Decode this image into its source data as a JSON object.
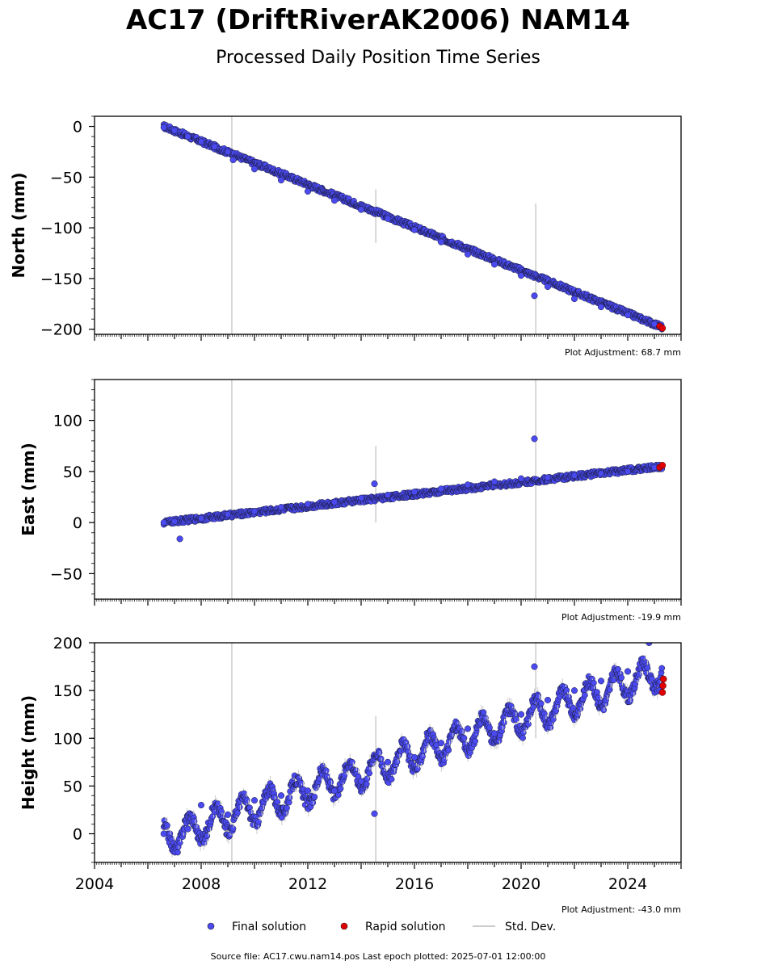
{
  "title": "AC17 (DriftRiverAK2006) NAM14",
  "subtitle": "Processed Daily Position Time Series",
  "legend": {
    "final": "Final solution",
    "rapid": "Rapid solution",
    "std": "Std. Dev."
  },
  "footer": "Source file: AC17.cwu.nam14.pos  Last epoch plotted: 2025-07-01 12:00:00",
  "colors": {
    "final": "#4a4af0",
    "rapid": "#e00000",
    "std": "#cccccc"
  },
  "chart_data": [
    {
      "type": "scatter",
      "ylabel": "North (mm)",
      "adjustment": "Plot Adjustment: 68.7 mm",
      "xlim": [
        2004,
        2026
      ],
      "ylim": [
        -205,
        10
      ],
      "yticks": [
        0,
        -50,
        -100,
        -150,
        -200
      ],
      "ytick_labels": [
        "0",
        "−50",
        "−100",
        "−150",
        "−200"
      ],
      "show_xtick_labels": false,
      "trend": {
        "start": [
          2006.6,
          0
        ],
        "end": [
          2025.3,
          -198
        ]
      },
      "final_solution": {
        "x": [
          2006.6,
          2007.0,
          2007.5,
          2008.0,
          2008.5,
          2009.0,
          2009.2,
          2010.0,
          2011.0,
          2012.0,
          2013.0,
          2014.0,
          2015.0,
          2016.0,
          2017.0,
          2018.0,
          2019.0,
          2020.0,
          2020.5,
          2021.0,
          2022.0,
          2023.0,
          2024.0,
          2025.0
        ],
        "y": [
          -1,
          -4,
          -10,
          -15,
          -20,
          -25,
          -33,
          -42,
          -53,
          -64,
          -73,
          -82,
          -91,
          -102,
          -114,
          -126,
          -136,
          -147,
          -167,
          -158,
          -170,
          -178,
          -186,
          -195
        ]
      },
      "rapid_solution": {
        "x": [
          2025.2,
          2025.3
        ],
        "y": [
          -197,
          -199
        ]
      },
      "std_dev_bars": [
        {
          "x": 2009.15,
          "low": -205,
          "high": 10
        },
        {
          "x": 2014.55,
          "low": -115,
          "high": -62
        },
        {
          "x": 2020.55,
          "low": -205,
          "high": -76
        }
      ]
    },
    {
      "type": "scatter",
      "ylabel": "East (mm)",
      "adjustment": "Plot Adjustment: -19.9 mm",
      "xlim": [
        2004,
        2026
      ],
      "ylim": [
        -75,
        140
      ],
      "yticks": [
        100,
        50,
        0,
        -50
      ],
      "ytick_labels": [
        "100",
        "50",
        "0",
        "−50"
      ],
      "show_xtick_labels": false,
      "trend": {
        "start": [
          2006.6,
          0
        ],
        "end": [
          2025.3,
          55
        ]
      },
      "final_solution": {
        "x": [
          2006.6,
          2007.0,
          2007.2,
          2008.0,
          2009.0,
          2010.0,
          2011.0,
          2012.0,
          2013.0,
          2014.0,
          2014.5,
          2015.0,
          2016.0,
          2017.0,
          2018.0,
          2019.0,
          2020.0,
          2020.5,
          2021.0,
          2022.0,
          2023.0,
          2024.0,
          2025.0
        ],
        "y": [
          0,
          1,
          -16,
          4,
          8,
          11,
          15,
          18,
          20,
          24,
          38,
          27,
          30,
          33,
          37,
          40,
          43,
          82,
          44,
          46,
          48,
          50,
          54
        ]
      },
      "rapid_solution": {
        "x": [
          2025.2,
          2025.3
        ],
        "y": [
          54,
          56
        ]
      },
      "std_dev_bars": [
        {
          "x": 2009.15,
          "low": -75,
          "high": 140
        },
        {
          "x": 2014.55,
          "low": 0,
          "high": 75
        },
        {
          "x": 2020.55,
          "low": -75,
          "high": 140
        }
      ]
    },
    {
      "type": "scatter",
      "ylabel": "Height (mm)",
      "adjustment": "Plot Adjustment: -43.0 mm",
      "xlim": [
        2004,
        2026
      ],
      "ylim": [
        -30,
        200
      ],
      "yticks": [
        200,
        150,
        100,
        50,
        0
      ],
      "ytick_labels": [
        "200",
        "150",
        "100",
        "50",
        "0"
      ],
      "show_xtick_labels": true,
      "xticks": [
        2004,
        2008,
        2012,
        2016,
        2020,
        2024
      ],
      "xtick_labels": [
        "2004",
        "2008",
        "2012",
        "2016",
        "2020",
        "2024"
      ],
      "trend": {
        "start": [
          2006.6,
          -5
        ],
        "end": [
          2025.3,
          170
        ],
        "seasonal_amplitude": 15
      },
      "final_solution": {
        "x": [
          2006.6,
          2007.5,
          2008.0,
          2009.0,
          2010.0,
          2011.0,
          2012.0,
          2013.0,
          2014.0,
          2014.5,
          2015.0,
          2016.0,
          2017.0,
          2018.0,
          2019.0,
          2020.0,
          2020.5,
          2021.0,
          2022.0,
          2023.0,
          2024.0,
          2024.8,
          2025.2
        ],
        "y": [
          0,
          5,
          30,
          20,
          35,
          40,
          45,
          45,
          55,
          21,
          75,
          80,
          95,
          110,
          105,
          125,
          175,
          140,
          150,
          160,
          170,
          200,
          150
        ]
      },
      "rapid_solution": {
        "x": [
          2025.3,
          2025.32,
          2025.34
        ],
        "y": [
          148,
          155,
          162
        ]
      },
      "std_dev_bars": [
        {
          "x": 2009.15,
          "low": -30,
          "high": 200
        },
        {
          "x": 2014.55,
          "low": -30,
          "high": 123
        },
        {
          "x": 2020.55,
          "low": 100,
          "high": 200
        }
      ]
    }
  ]
}
